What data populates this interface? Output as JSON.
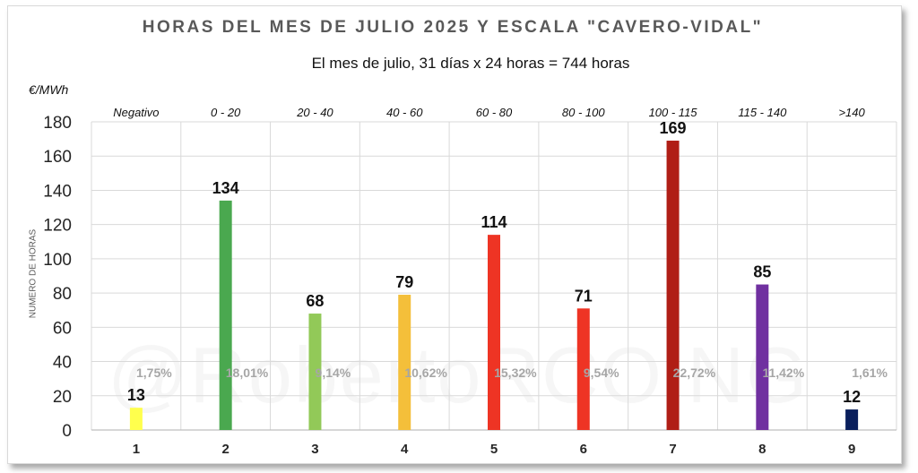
{
  "header": {
    "title": "HORAS DEL MES DE JULIO 2025 Y ESCALA \"CAVERO-VIDAL\"",
    "subtitle": "El mes de julio, 31 días x 24 horas  = 744 horas",
    "unit": "€/MWh",
    "watermark": "@RobertoRCOING"
  },
  "chart_data": {
    "type": "bar",
    "title": "HORAS DEL MES DE JULIO 2025 Y ESCALA \"CAVERO-VIDAL\"",
    "subtitle": "El mes de julio, 31 días x 24 horas  = 744 horas",
    "xlabel": "",
    "ylabel": "NUMERO DE HORAS",
    "ylim": [
      0,
      180
    ],
    "yticks": [
      0,
      20,
      40,
      60,
      80,
      100,
      120,
      140,
      160,
      180
    ],
    "grid": true,
    "categories": [
      "1",
      "2",
      "3",
      "4",
      "5",
      "6",
      "7",
      "8",
      "9"
    ],
    "ranges": [
      "Negativo",
      "0 - 20",
      "20 - 40",
      "40 - 60",
      "60 - 80",
      "80 - 100",
      "100 - 115",
      "115 - 140",
      ">140"
    ],
    "values": [
      13,
      134,
      68,
      79,
      114,
      71,
      169,
      85,
      12
    ],
    "percentages": [
      "1,75%",
      "18,01%",
      "9,14%",
      "10,62%",
      "15,32%",
      "9,54%",
      "22,72%",
      "11,42%",
      "1,61%"
    ],
    "colors": [
      "#ffff4d",
      "#4aa84f",
      "#92c958",
      "#f4bf3a",
      "#ee3424",
      "#ee3424",
      "#b01e16",
      "#7030a0",
      "#0a1f5c"
    ]
  }
}
